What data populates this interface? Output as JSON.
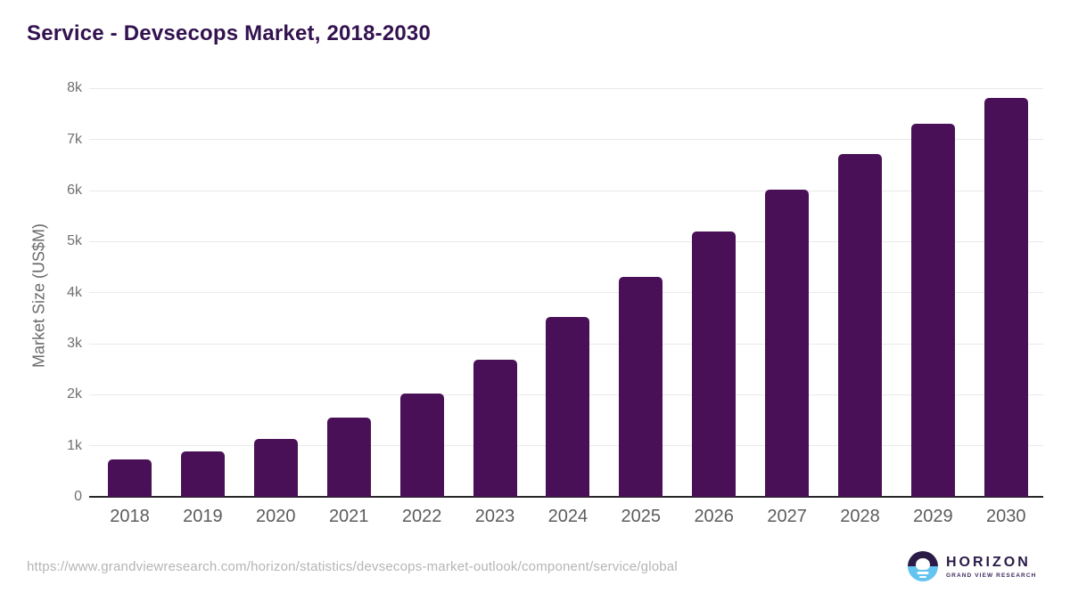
{
  "title": "Service - Devsecops Market, 2018-2030",
  "chart_data": {
    "type": "bar",
    "title": "Service - Devsecops Market, 2018-2030",
    "categories": [
      "2018",
      "2019",
      "2020",
      "2021",
      "2022",
      "2023",
      "2024",
      "2025",
      "2026",
      "2027",
      "2028",
      "2029",
      "2030"
    ],
    "values": [
      730,
      895,
      1140,
      1545,
      2030,
      2690,
      3515,
      4300,
      5190,
      6010,
      6710,
      7300,
      7820
    ],
    "xlabel": "",
    "ylabel": "Market Size (US$M)",
    "ylim": [
      0,
      8250
    ],
    "yticks": [
      {
        "v": 0,
        "label": "0"
      },
      {
        "v": 1000,
        "label": "1k"
      },
      {
        "v": 2000,
        "label": "2k"
      },
      {
        "v": 3000,
        "label": "3k"
      },
      {
        "v": 4000,
        "label": "4k"
      },
      {
        "v": 5000,
        "label": "5k"
      },
      {
        "v": 6000,
        "label": "6k"
      },
      {
        "v": 7000,
        "label": "7k"
      },
      {
        "v": 8000,
        "label": "8k"
      }
    ],
    "grid": true,
    "legend": false,
    "bar_color": "#4a1057"
  },
  "footer": {
    "source_url": "https://www.grandviewresearch.com/horizon/statistics/devsecops-market-outlook/component/service/global",
    "logo": {
      "brand": "HORIZON",
      "tagline": "GRAND VIEW RESEARCH"
    }
  },
  "colors": {
    "bar": "#4a1057",
    "title": "#33124f",
    "grid": "#e9e9e9",
    "axis_line": "#262626",
    "tick_label": "#707070",
    "x_tick_label": "#5c5c5c",
    "url": "#b5b5b5",
    "logo_purple": "#2a1b47",
    "logo_blue": "#63c4f0"
  }
}
